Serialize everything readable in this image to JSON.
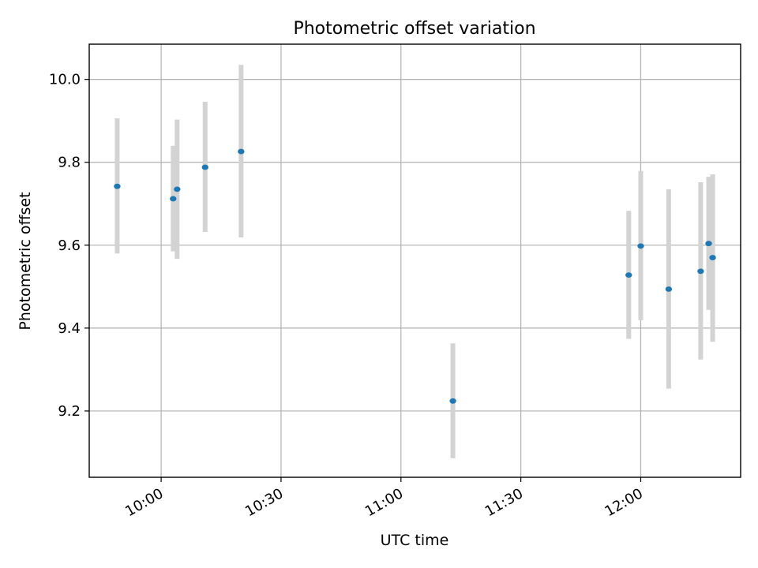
{
  "chart_data": {
    "type": "scatter",
    "title": "Photometric offset variation",
    "xlabel": "UTC time",
    "ylabel": "Photometric offset",
    "x_tick_labels": [
      "10:00",
      "10:30",
      "11:00",
      "11:30",
      "12:00"
    ],
    "y_ticks": [
      9.2,
      9.4,
      9.6,
      9.8,
      10.0
    ],
    "y_tick_labels": [
      "9.2",
      "9.4",
      "9.6",
      "9.8",
      "10.0"
    ],
    "xlim": [
      "09:42",
      "12:25"
    ],
    "ylim": [
      9.04,
      10.085
    ],
    "grid": true,
    "legend": "none",
    "colors": {
      "point": "#1f77b4",
      "errorbar": "#d3d3d3",
      "grid": "#b0b0b0"
    },
    "points": [
      {
        "x": "09:49",
        "y": 9.742,
        "yerr_low": 9.58,
        "yerr_high": 9.906
      },
      {
        "x": "10:03",
        "y": 9.712,
        "yerr_low": 9.585,
        "yerr_high": 9.84
      },
      {
        "x": "10:04",
        "y": 9.735,
        "yerr_low": 9.567,
        "yerr_high": 9.903
      },
      {
        "x": "10:11",
        "y": 9.788,
        "yerr_low": 9.632,
        "yerr_high": 9.946
      },
      {
        "x": "10:20",
        "y": 9.826,
        "yerr_low": 9.619,
        "yerr_high": 10.035
      },
      {
        "x": "11:13",
        "y": 9.224,
        "yerr_low": 9.086,
        "yerr_high": 9.363
      },
      {
        "x": "11:57",
        "y": 9.528,
        "yerr_low": 9.374,
        "yerr_high": 9.683
      },
      {
        "x": "12:00",
        "y": 9.598,
        "yerr_low": 9.419,
        "yerr_high": 9.779
      },
      {
        "x": "12:07",
        "y": 9.494,
        "yerr_low": 9.254,
        "yerr_high": 9.735
      },
      {
        "x": "12:15",
        "y": 9.537,
        "yerr_low": 9.324,
        "yerr_high": 9.752
      },
      {
        "x": "12:17",
        "y": 9.604,
        "yerr_low": 9.444,
        "yerr_high": 9.765
      },
      {
        "x": "12:18",
        "y": 9.57,
        "yerr_low": 9.367,
        "yerr_high": 9.771
      }
    ]
  }
}
